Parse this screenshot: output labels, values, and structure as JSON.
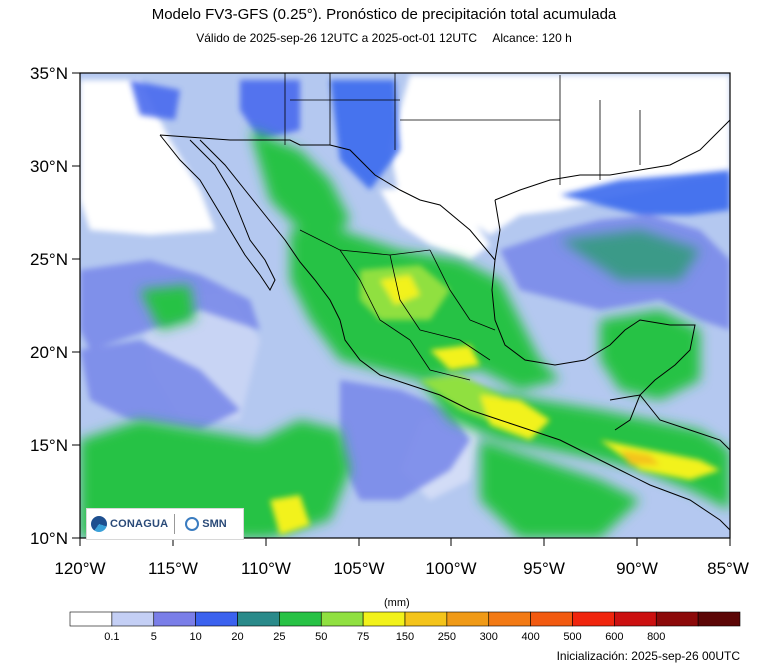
{
  "header": {
    "title": "Modelo FV3-GFS (0.25°). Pronóstico de precipitación total acumulada",
    "valid": "Válido de 2025-sep-26 12UTC a 2025-oct-01 12UTC",
    "range": "Alcance: 120 h"
  },
  "map": {
    "lat_labels": [
      "35°N",
      "30°N",
      "25°N",
      "20°N",
      "15°N",
      "10°N"
    ],
    "lon_labels": [
      "120°W",
      "115°W",
      "110°W",
      "105°W",
      "100°W",
      "95°W",
      "90°W",
      "85°W"
    ],
    "field_colors": {
      "none": "#ffffff",
      "lightblue": "#b4c8f0",
      "midblue": "#7a8aea",
      "blue": "#3a6aee",
      "green": "#1fcb55",
      "lightgreen": "#88e030",
      "yellow": "#f0f02a",
      "orange": "#f0c020",
      "coast": "#000000"
    }
  },
  "colorbar": {
    "units": "(mm)",
    "colors": [
      "#ffffff",
      "#c4cff5",
      "#7a7ee8",
      "#3b62ef",
      "#2a8a8a",
      "#27c245",
      "#90e040",
      "#f2f21a",
      "#f4c41a",
      "#f09a17",
      "#f37a14",
      "#f25a10",
      "#f0250d",
      "#cc1010",
      "#8c0a0a",
      "#5c0606"
    ],
    "labels": [
      "0.1",
      "5",
      "10",
      "20",
      "25",
      "50",
      "75",
      "150",
      "250",
      "300",
      "400",
      "500",
      "600",
      "800"
    ]
  },
  "logos": {
    "conagua": "CONAGUA",
    "smn": "SMN"
  },
  "footer": {
    "init": "Inicialización: 2025-sep-26 00UTC"
  }
}
